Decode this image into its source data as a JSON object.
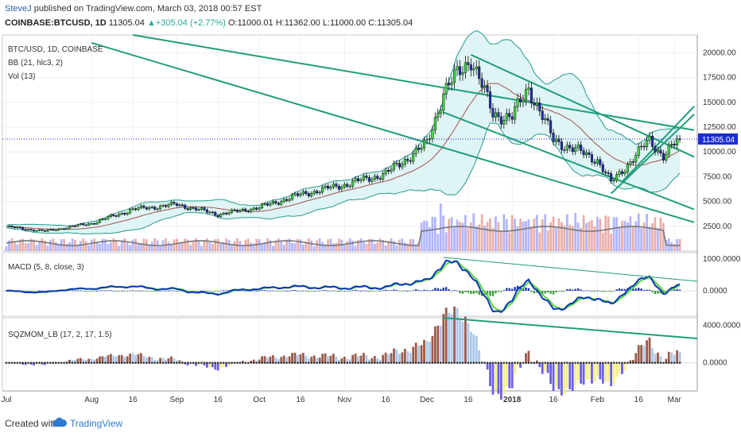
{
  "header": {
    "author": "SteveJ",
    "published": "published on TradingView.com, March 03, 2018 00:57 EST",
    "symbol_line": "COINBASE:BTCUSD, 1D",
    "last": "11305.04",
    "change": "+305.04 (+2.77%)",
    "ohlc_o": "O:11000.01",
    "ohlc_h": "H:11362.00",
    "ohlc_l": "L:11000.00",
    "ohlc_c": "C:11305.04"
  },
  "legends": {
    "main_title": "BTC/USD, 1D, COINBASE",
    "bb": "BB (21, hlc3, 2)",
    "vol": "Vol (13)",
    "macd": "MACD (5, 8, close, 3)",
    "sqz": "SQZMOM_LB (17, 2, 17, 1.5)"
  },
  "footer": {
    "created": "Created with",
    "brand": "TradingView"
  },
  "colors": {
    "up_candle": "#3fe03f",
    "down_candle": "#1f2fb0",
    "bb_fill": "#dff4f4",
    "bb_line": "#26998f",
    "bb_mid": "#a0524d",
    "trend": "#1f9e7a",
    "price_line": "#1a2bd8",
    "macd_line": "#0b36b5",
    "signal_line": "#56d63e",
    "sqz_pos": "#9a5a4a",
    "sqz_pos_light": "#a9c7e9",
    "sqz_neg": "#6b5de8",
    "sqz_neg_light": "#f5f083"
  },
  "chart_data": [
    {
      "type": "candlestick",
      "name": "BTC/USD, 1D",
      "x": [
        "Jul",
        "Aug",
        "16",
        "Sep",
        "16",
        "Oct",
        "16",
        "Nov",
        "16",
        "Dec",
        "16",
        "2018",
        "16",
        "Feb",
        "16",
        "Mar"
      ],
      "price_points": [
        {
          "date": "Jul 1",
          "close": 2450
        },
        {
          "date": "Jul 15",
          "close": 2000
        },
        {
          "date": "Aug 1",
          "close": 2800
        },
        {
          "date": "Aug 16",
          "close": 4200
        },
        {
          "date": "Sep 1",
          "close": 4700
        },
        {
          "date": "Sep 16",
          "close": 3700
        },
        {
          "date": "Oct 1",
          "close": 4400
        },
        {
          "date": "Oct 16",
          "close": 5700
        },
        {
          "date": "Nov 1",
          "close": 6700
        },
        {
          "date": "Nov 16",
          "close": 7800
        },
        {
          "date": "Dec 1",
          "close": 10800
        },
        {
          "date": "Dec 7",
          "close": 16000
        },
        {
          "date": "Dec 17",
          "close": 19500
        },
        {
          "date": "Dec 25",
          "close": 13800
        },
        {
          "date": "Jan 1",
          "close": 13500
        },
        {
          "date": "Jan 7",
          "close": 16500
        },
        {
          "date": "Jan 16",
          "close": 11200
        },
        {
          "date": "Feb 1",
          "close": 9200
        },
        {
          "date": "Feb 6",
          "close": 6900
        },
        {
          "date": "Feb 20",
          "close": 11200
        },
        {
          "date": "Feb 25",
          "close": 9600
        },
        {
          "date": "Mar 3",
          "close": 11305.04
        }
      ],
      "last_price": 11305.04,
      "yaxis_ticks": [
        2500,
        5000,
        7500,
        10000,
        12500,
        15000,
        17500,
        20000
      ],
      "ylim": [
        0,
        21800
      ]
    },
    {
      "type": "line",
      "name": "MACD (5, 8, close, 3)",
      "yaxis_ticks": [
        "1000.0000",
        "0.0000"
      ],
      "ylim": [
        -800,
        1200
      ]
    },
    {
      "type": "bar",
      "name": "SQZMOM_LB (17, 2, 17, 1.5)",
      "yaxis_ticks": [
        "4000.0000",
        "0.0000"
      ],
      "ylim": [
        -3000,
        4800
      ]
    }
  ]
}
